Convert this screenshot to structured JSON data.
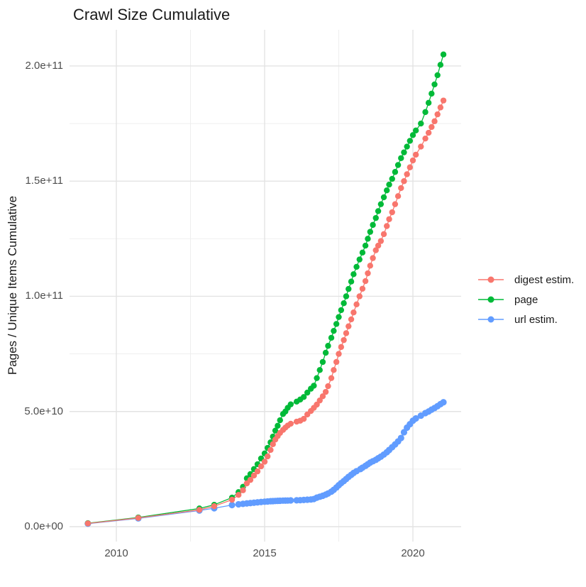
{
  "title": "Crawl Size Cumulative",
  "y_axis": {
    "title": "Pages / Unique Items Cumulative",
    "tick_labels": [
      "2.0e+11",
      "1.5e+11",
      "1.0e+11",
      "5.0e+10",
      "0.0e+00"
    ],
    "tick_values": [
      200000000000.0,
      150000000000.0,
      100000000000.0,
      50000000000.0,
      0
    ],
    "minor_values": [
      175000000000.0,
      125000000000.0,
      75000000000.0,
      25000000000.0
    ]
  },
  "x_axis": {
    "tick_labels": [
      "2010",
      "2015",
      "2020"
    ],
    "tick_values": [
      2010,
      2015,
      2020
    ],
    "minor_values": [
      2012.5,
      2017.5
    ]
  },
  "legend": {
    "items": [
      {
        "label": "digest estim.",
        "color": "#F8766D"
      },
      {
        "label": "page",
        "color": "#00BA38"
      },
      {
        "label": "url estim.",
        "color": "#619CFF"
      }
    ]
  },
  "colors": {
    "digest": "#F8766D",
    "page": "#00BA38",
    "url": "#619CFF",
    "grid_major": "#E3E3E3",
    "grid_minor": "#EDEDED",
    "tick_text": "#4d4d4d",
    "title_text": "#1a1a1a"
  },
  "chart_data": {
    "type": "line",
    "title": "Crawl Size Cumulative",
    "xlabel": "",
    "ylabel": "Pages / Unique Items Cumulative",
    "xlim": [
      2008.4,
      2021.8
    ],
    "ylim": [
      0,
      216000000000.0
    ],
    "grid": true,
    "legend_position": "right",
    "marker": "point",
    "series": [
      {
        "name": "digest estim.",
        "color": "#F8766D",
        "points": [
          [
            2009.04,
            1400000000.0
          ],
          [
            2010.74,
            3800000000.0
          ],
          [
            2012.8,
            7300000000.0
          ],
          [
            2013.3,
            8900000000.0
          ],
          [
            2013.9,
            11700000000.0
          ],
          [
            2014.12,
            13800000000.0
          ],
          [
            2014.27,
            15800000000.0
          ],
          [
            2014.4,
            18800000000.0
          ],
          [
            2014.52,
            20300000000.0
          ],
          [
            2014.64,
            22200000000.0
          ],
          [
            2014.76,
            24000000000.0
          ],
          [
            2014.88,
            26200000000.0
          ],
          [
            2015.0,
            28200000000.0
          ],
          [
            2015.1,
            30500000000.0
          ],
          [
            2015.2,
            33300000000.0
          ],
          [
            2015.28,
            35800000000.0
          ],
          [
            2015.36,
            37800000000.0
          ],
          [
            2015.44,
            39300000000.0
          ],
          [
            2015.52,
            40700000000.0
          ],
          [
            2015.62,
            42000000000.0
          ],
          [
            2015.7,
            43000000000.0
          ],
          [
            2015.78,
            43900000000.0
          ],
          [
            2015.88,
            44700000000.0
          ],
          [
            2016.08,
            45600000000.0
          ],
          [
            2016.2,
            46000000000.0
          ],
          [
            2016.32,
            46800000000.0
          ],
          [
            2016.44,
            48700000000.0
          ],
          [
            2016.56,
            50200000000.0
          ],
          [
            2016.66,
            51600000000.0
          ],
          [
            2016.76,
            53000000000.0
          ],
          [
            2016.86,
            54800000000.0
          ],
          [
            2016.96,
            56600000000.0
          ],
          [
            2017.06,
            58500000000.0
          ],
          [
            2017.14,
            61000000000.0
          ],
          [
            2017.25,
            64500000000.0
          ],
          [
            2017.33,
            68000000000.0
          ],
          [
            2017.42,
            71500000000.0
          ],
          [
            2017.5,
            75000000000.0
          ],
          [
            2017.58,
            78000000000.0
          ],
          [
            2017.67,
            81000000000.0
          ],
          [
            2017.75,
            84000000000.0
          ],
          [
            2017.83,
            87000000000.0
          ],
          [
            2017.92,
            90000000000.0
          ],
          [
            2018.0,
            93000000000.0
          ],
          [
            2018.1,
            96500000000.0
          ],
          [
            2018.2,
            100000000000.0
          ],
          [
            2018.3,
            103300000000.0
          ],
          [
            2018.4,
            106600000000.0
          ],
          [
            2018.48,
            110000000000.0
          ],
          [
            2018.56,
            113300000000.0
          ],
          [
            2018.65,
            116600000000.0
          ],
          [
            2018.75,
            120000000000.0
          ],
          [
            2018.83,
            122000000000.0
          ],
          [
            2018.92,
            124000000000.0
          ],
          [
            2019.02,
            127000000000.0
          ],
          [
            2019.12,
            130500000000.0
          ],
          [
            2019.2,
            133500000000.0
          ],
          [
            2019.3,
            136500000000.0
          ],
          [
            2019.4,
            140000000000.0
          ],
          [
            2019.5,
            143500000000.0
          ],
          [
            2019.6,
            147000000000.0
          ],
          [
            2019.7,
            150000000000.0
          ],
          [
            2019.8,
            153000000000.0
          ],
          [
            2019.9,
            156000000000.0
          ],
          [
            2020.0,
            159000000000.0
          ],
          [
            2020.1,
            161500000000.0
          ],
          [
            2020.27,
            165000000000.0
          ],
          [
            2020.42,
            168500000000.0
          ],
          [
            2020.53,
            171000000000.0
          ],
          [
            2020.63,
            173500000000.0
          ],
          [
            2020.73,
            176000000000.0
          ],
          [
            2020.83,
            179000000000.0
          ],
          [
            2020.93,
            182000000000.0
          ],
          [
            2021.03,
            185000000000.0
          ]
        ]
      },
      {
        "name": "page",
        "color": "#00BA38",
        "points": [
          [
            2009.04,
            1500000000.0
          ],
          [
            2010.74,
            4000000000.0
          ],
          [
            2012.8,
            7900000000.0
          ],
          [
            2013.3,
            9500000000.0
          ],
          [
            2013.9,
            12600000000.0
          ],
          [
            2014.12,
            15000000000.0
          ],
          [
            2014.27,
            17300000000.0
          ],
          [
            2014.4,
            21000000000.0
          ],
          [
            2014.52,
            22800000000.0
          ],
          [
            2014.64,
            25000000000.0
          ],
          [
            2014.76,
            27100000000.0
          ],
          [
            2014.88,
            29600000000.0
          ],
          [
            2015.0,
            31800000000.0
          ],
          [
            2015.1,
            34200000000.0
          ],
          [
            2015.2,
            36600000000.0
          ],
          [
            2015.28,
            39100000000.0
          ],
          [
            2015.36,
            41700000000.0
          ],
          [
            2015.44,
            43800000000.0
          ],
          [
            2015.52,
            46200000000.0
          ],
          [
            2015.62,
            48900000000.0
          ],
          [
            2015.7,
            50000000000.0
          ],
          [
            2015.78,
            51600000000.0
          ],
          [
            2015.88,
            53100000000.0
          ],
          [
            2016.08,
            54300000000.0
          ],
          [
            2016.2,
            55200000000.0
          ],
          [
            2016.32,
            56300000000.0
          ],
          [
            2016.44,
            58200000000.0
          ],
          [
            2016.56,
            59900000000.0
          ],
          [
            2016.66,
            61200000000.0
          ],
          [
            2016.76,
            64500000000.0
          ],
          [
            2016.86,
            68000000000.0
          ],
          [
            2016.96,
            71500000000.0
          ],
          [
            2017.06,
            75500000000.0
          ],
          [
            2017.14,
            78500000000.0
          ],
          [
            2017.25,
            82000000000.0
          ],
          [
            2017.33,
            85000000000.0
          ],
          [
            2017.42,
            88000000000.0
          ],
          [
            2017.5,
            91000000000.0
          ],
          [
            2017.58,
            94000000000.0
          ],
          [
            2017.67,
            97000000000.0
          ],
          [
            2017.75,
            100000000000.0
          ],
          [
            2017.83,
            103200000000.0
          ],
          [
            2017.92,
            106400000000.0
          ],
          [
            2018.0,
            109600000000.0
          ],
          [
            2018.1,
            112800000000.0
          ],
          [
            2018.2,
            116000000000.0
          ],
          [
            2018.3,
            119000000000.0
          ],
          [
            2018.4,
            122000000000.0
          ],
          [
            2018.48,
            125000000000.0
          ],
          [
            2018.56,
            128000000000.0
          ],
          [
            2018.65,
            131000000000.0
          ],
          [
            2018.75,
            134000000000.0
          ],
          [
            2018.83,
            137000000000.0
          ],
          [
            2018.92,
            140000000000.0
          ],
          [
            2019.02,
            143000000000.0
          ],
          [
            2019.12,
            146000000000.0
          ],
          [
            2019.2,
            148500000000.0
          ],
          [
            2019.3,
            151000000000.0
          ],
          [
            2019.4,
            154000000000.0
          ],
          [
            2019.5,
            157000000000.0
          ],
          [
            2019.6,
            160000000000.0
          ],
          [
            2019.7,
            162500000000.0
          ],
          [
            2019.8,
            165000000000.0
          ],
          [
            2019.9,
            167500000000.0
          ],
          [
            2020.0,
            170000000000.0
          ],
          [
            2020.1,
            172000000000.0
          ],
          [
            2020.27,
            175000000000.0
          ],
          [
            2020.42,
            180000000000.0
          ],
          [
            2020.53,
            184000000000.0
          ],
          [
            2020.63,
            188000000000.0
          ],
          [
            2020.73,
            192000000000.0
          ],
          [
            2020.83,
            196000000000.0
          ],
          [
            2020.93,
            200500000000.0
          ],
          [
            2021.03,
            205000000000.0
          ]
        ]
      },
      {
        "name": "url estim.",
        "color": "#619CFF",
        "points": [
          [
            2009.04,
            1300000000.0
          ],
          [
            2010.74,
            3600000000.0
          ],
          [
            2012.8,
            7000000000.0
          ],
          [
            2013.3,
            8000000000.0
          ],
          [
            2013.9,
            9400000000.0
          ],
          [
            2014.12,
            9700000000.0
          ],
          [
            2014.27,
            9900000000.0
          ],
          [
            2014.4,
            10100000000.0
          ],
          [
            2014.52,
            10250000000.0
          ],
          [
            2014.64,
            10400000000.0
          ],
          [
            2014.76,
            10550000000.0
          ],
          [
            2014.88,
            10700000000.0
          ],
          [
            2015.0,
            10850000000.0
          ],
          [
            2015.1,
            10950000000.0
          ],
          [
            2015.2,
            11050000000.0
          ],
          [
            2015.28,
            11100000000.0
          ],
          [
            2015.36,
            11150000000.0
          ],
          [
            2015.44,
            11200000000.0
          ],
          [
            2015.52,
            11250000000.0
          ],
          [
            2015.62,
            11300000000.0
          ],
          [
            2015.7,
            11320000000.0
          ],
          [
            2015.78,
            11350000000.0
          ],
          [
            2015.88,
            11400000000.0
          ],
          [
            2016.08,
            11450000000.0
          ],
          [
            2016.2,
            11500000000.0
          ],
          [
            2016.32,
            11600000000.0
          ],
          [
            2016.44,
            11700000000.0
          ],
          [
            2016.56,
            11800000000.0
          ],
          [
            2016.66,
            12000000000.0
          ],
          [
            2016.76,
            12600000000.0
          ],
          [
            2016.86,
            13000000000.0
          ],
          [
            2016.96,
            13400000000.0
          ],
          [
            2017.06,
            13900000000.0
          ],
          [
            2017.14,
            14400000000.0
          ],
          [
            2017.25,
            15200000000.0
          ],
          [
            2017.33,
            16000000000.0
          ],
          [
            2017.42,
            17000000000.0
          ],
          [
            2017.5,
            18000000000.0
          ],
          [
            2017.58,
            18900000000.0
          ],
          [
            2017.67,
            19800000000.0
          ],
          [
            2017.75,
            20700000000.0
          ],
          [
            2017.83,
            21600000000.0
          ],
          [
            2017.92,
            22500000000.0
          ],
          [
            2018.0,
            23300000000.0
          ],
          [
            2018.1,
            24100000000.0
          ],
          [
            2018.23,
            25000000000.0
          ],
          [
            2018.3,
            25600000000.0
          ],
          [
            2018.4,
            26400000000.0
          ],
          [
            2018.48,
            27100000000.0
          ],
          [
            2018.56,
            27800000000.0
          ],
          [
            2018.65,
            28400000000.0
          ],
          [
            2018.75,
            29000000000.0
          ],
          [
            2018.83,
            29700000000.0
          ],
          [
            2018.92,
            30400000000.0
          ],
          [
            2019.02,
            31300000000.0
          ],
          [
            2019.12,
            32300000000.0
          ],
          [
            2019.2,
            33300000000.0
          ],
          [
            2019.3,
            34500000000.0
          ],
          [
            2019.4,
            35700000000.0
          ],
          [
            2019.5,
            37000000000.0
          ],
          [
            2019.6,
            38500000000.0
          ],
          [
            2019.7,
            41000000000.0
          ],
          [
            2019.8,
            43000000000.0
          ],
          [
            2019.9,
            44500000000.0
          ],
          [
            2020.0,
            46000000000.0
          ],
          [
            2020.1,
            47000000000.0
          ],
          [
            2020.27,
            48200000000.0
          ],
          [
            2020.42,
            49300000000.0
          ],
          [
            2020.53,
            50000000000.0
          ],
          [
            2020.63,
            50800000000.0
          ],
          [
            2020.73,
            51500000000.0
          ],
          [
            2020.83,
            52300000000.0
          ],
          [
            2020.93,
            53200000000.0
          ],
          [
            2021.03,
            54000000000.0
          ]
        ]
      }
    ]
  }
}
